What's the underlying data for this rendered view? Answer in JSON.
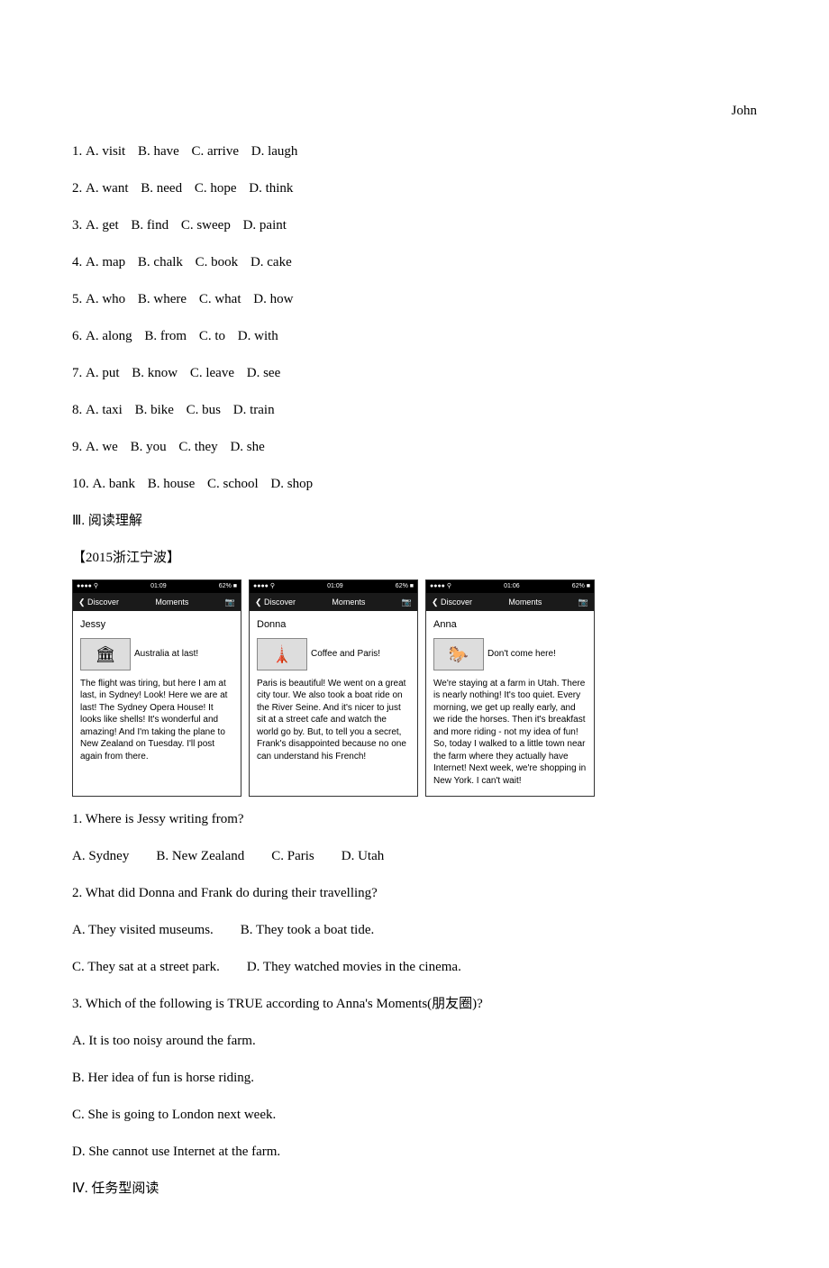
{
  "author": "John",
  "cloze_questions": [
    {
      "num": "1.",
      "a": "A. visit",
      "b": "B. have",
      "c": "C. arrive",
      "d": "D. laugh"
    },
    {
      "num": "2.",
      "a": "A. want",
      "b": "B. need",
      "c": "C. hope",
      "d": "D. think"
    },
    {
      "num": "3.",
      "a": "A. get",
      "b": "B. find",
      "c": "C. sweep",
      "d": "D. paint"
    },
    {
      "num": "4.",
      "a": "A. map",
      "b": "B. chalk",
      "c": "C. book",
      "d": "D. cake"
    },
    {
      "num": "5.",
      "a": "A. who",
      "b": "B. where",
      "c": "C. what",
      "d": "D. how"
    },
    {
      "num": "6.",
      "a": "A. along",
      "b": "B. from",
      "c": "C. to",
      "d": "D. with"
    },
    {
      "num": "7.",
      "a": "A. put",
      "b": "B. know",
      "c": "C. leave",
      "d": "D. see"
    },
    {
      "num": "8.",
      "a": "A. taxi",
      "b": "B. bike",
      "c": "C. bus",
      "d": "D. train"
    },
    {
      "num": "9.",
      "a": "A. we",
      "b": "B. you",
      "c": "C. they",
      "d": "D. she"
    },
    {
      "num": "10.",
      "a": "A. bank",
      "b": "B. house",
      "c": "C. school",
      "d": "D. shop"
    }
  ],
  "section3_header": "Ⅲ. 阅读理解",
  "source": "【2015浙江宁波】",
  "phones": {
    "statusbar": {
      "left": "●●●●    ⚲",
      "time1": "01:09",
      "time2": "01:09",
      "time3": "01:06",
      "right": "62% ■"
    },
    "header": {
      "back": "❮ Discover",
      "title": "Moments",
      "camera": "📷"
    },
    "cards": [
      {
        "name": "Jessy",
        "caption": "Australia at last!",
        "body": "The flight was tiring, but here I am at last, in Sydney! Look! Here we are at last! The Sydney Opera House! It looks like shells! It's wonderful and amazing! And I'm taking the plane to New Zealand on Tuesday. I'll post again from there."
      },
      {
        "name": "Donna",
        "caption": "Coffee and Paris!",
        "body": "Paris is beautiful! We went on a great city tour. We also took a boat ride on the River Seine. And it's nicer to just sit at a street cafe and watch the world go by. But, to tell you a secret, Frank's disappointed because no one can understand his French!"
      },
      {
        "name": "Anna",
        "caption": "Don't come here!",
        "body": "We're staying at a farm in Utah. There is nearly nothing! It's too quiet. Every morning, we get up really early, and we ride the horses. Then it's breakfast and more riding - not my idea of fun! So, today I walked to a little town near the farm where they actually have Internet! Next week, we're shopping in New York. I can't wait!"
      }
    ]
  },
  "reading_questions": [
    {
      "q": "1. Where is Jessy writing from?",
      "opts_inline": [
        {
          "t": "A. Sydney",
          "gap": "gap-l"
        },
        {
          "t": "B. New Zealand",
          "gap": "gap-l"
        },
        {
          "t": "C. Paris",
          "gap": "gap-l"
        },
        {
          "t": "D. Utah",
          "gap": ""
        }
      ]
    },
    {
      "q": "2. What did Donna and Frank do during their travelling?",
      "opt_rows": [
        [
          {
            "t": "A. They visited museums.",
            "gap": "gap-l"
          },
          {
            "t": "B. They took a boat tide.",
            "gap": ""
          }
        ],
        [
          {
            "t": "C. They sat at a street park.",
            "gap": "gap-l"
          },
          {
            "t": "D. They watched movies in the cinema.",
            "gap": ""
          }
        ]
      ]
    },
    {
      "q": "3. Which of the following is TRUE according to Anna's Moments(朋友圈)?",
      "opt_block": [
        "A. It is too noisy around the farm.",
        "B. Her idea of fun is horse riding.",
        "C. She is going to London next week.",
        "D. She cannot use Internet at the farm."
      ]
    }
  ],
  "section4_header": "Ⅳ. 任务型阅读"
}
